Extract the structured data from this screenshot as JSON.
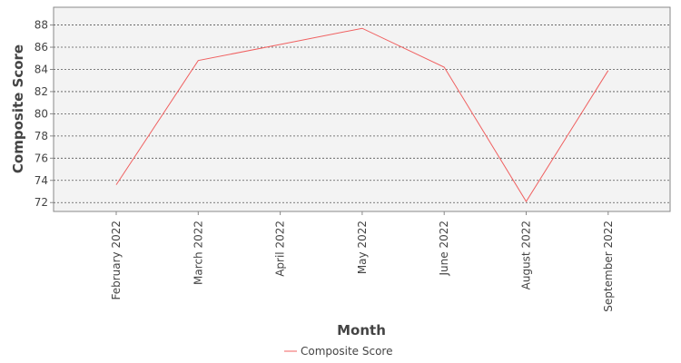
{
  "chart_data": {
    "type": "line",
    "title": "",
    "xlabel": "Month",
    "ylabel": "Composite Score",
    "categories": [
      "February 2022",
      "March 2022",
      "April 2022",
      "May 2022",
      "June 2022",
      "August 2022",
      "September 2022"
    ],
    "series": [
      {
        "name": "Composite Score",
        "values": [
          73.6,
          84.8,
          86.25,
          87.7,
          84.2,
          72.1,
          83.9
        ],
        "color": "#f06060"
      }
    ],
    "y_ticks": [
      72,
      74,
      76,
      78,
      80,
      82,
      84,
      86,
      88
    ],
    "ylim": [
      71.2,
      89.6
    ],
    "grid": true,
    "grid_style": "dashed",
    "plot_background": "#f3f3f3",
    "legend_position": "bottom-center"
  }
}
